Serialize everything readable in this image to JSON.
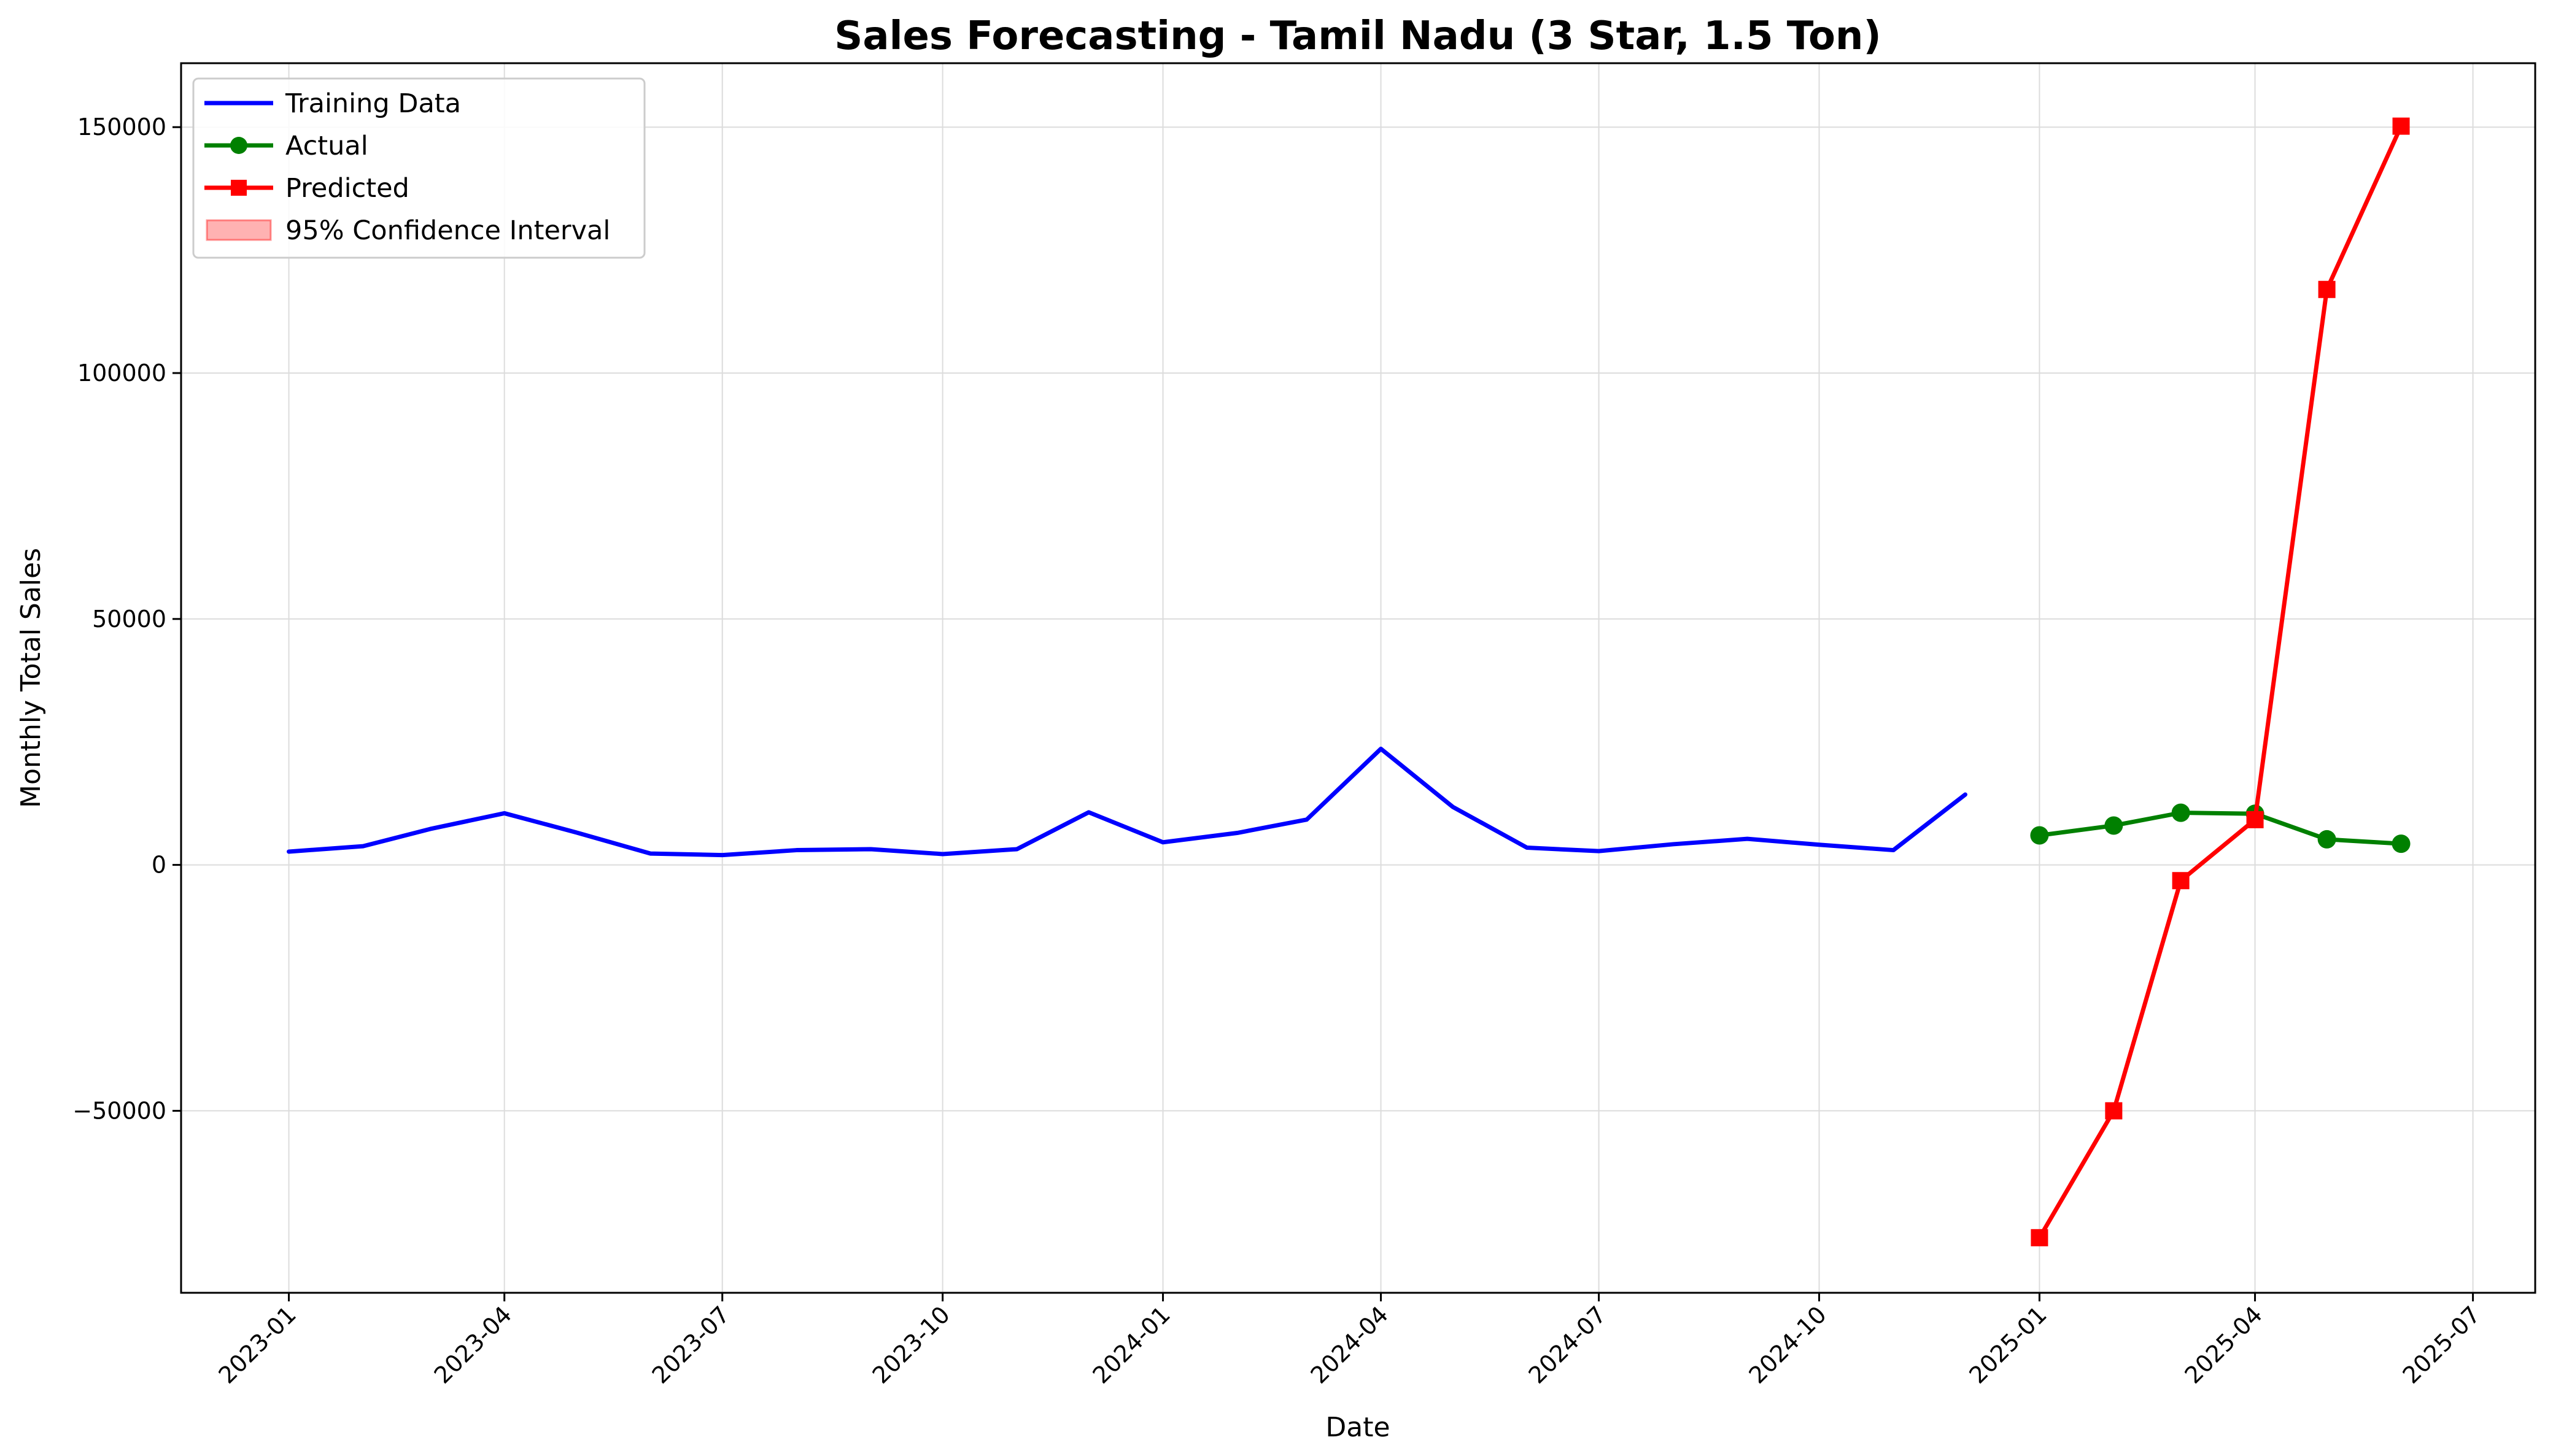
{
  "chart_data": {
    "type": "line",
    "title": "Sales Forecasting - Tamil Nadu (3 Star, 1.5 Ton)",
    "xlabel": "Date",
    "ylabel": "Monthly Total Sales",
    "xlim": [
      "2022-11-17",
      "2025-07-27"
    ],
    "ylim": [
      -87000,
      163000
    ],
    "x_ticks": [
      "2023-01",
      "2023-04",
      "2023-07",
      "2023-10",
      "2024-01",
      "2024-04",
      "2024-07",
      "2024-10",
      "2025-01",
      "2025-04",
      "2025-07"
    ],
    "y_ticks": [
      -50000,
      0,
      50000,
      100000,
      150000
    ],
    "y_tick_labels": [
      "−50000",
      "0",
      "50000",
      "100000",
      "150000"
    ],
    "grid": true,
    "legend_position": "top-left",
    "series": [
      {
        "name": "Training Data",
        "color": "#0000ff",
        "marker": "none",
        "x": [
          "2023-01-01",
          "2023-02-01",
          "2023-03-01",
          "2023-04-01",
          "2023-05-01",
          "2023-06-01",
          "2023-07-01",
          "2023-08-01",
          "2023-09-01",
          "2023-10-01",
          "2023-11-01",
          "2023-12-01",
          "2024-01-01",
          "2024-02-01",
          "2024-03-01",
          "2024-04-01",
          "2024-05-01",
          "2024-06-01",
          "2024-07-01",
          "2024-08-01",
          "2024-09-01",
          "2024-10-01",
          "2024-11-01",
          "2024-12-01"
        ],
        "y": [
          2700,
          3800,
          7300,
          10500,
          6600,
          2300,
          2000,
          3000,
          3200,
          2200,
          3200,
          10700,
          4600,
          6500,
          9200,
          23600,
          11800,
          3500,
          2800,
          4200,
          5300,
          4100,
          3000,
          14300
        ]
      },
      {
        "name": "Actual",
        "color": "#008000",
        "marker": "circle",
        "x": [
          "2025-01-01",
          "2025-02-01",
          "2025-03-01",
          "2025-04-01",
          "2025-05-01",
          "2025-06-01"
        ],
        "y": [
          6000,
          8000,
          10600,
          10400,
          5200,
          4300
        ]
      },
      {
        "name": "Predicted",
        "color": "#ff0000",
        "marker": "square",
        "x": [
          "2025-01-01",
          "2025-02-01",
          "2025-03-01",
          "2025-04-01",
          "2025-05-01",
          "2025-06-01"
        ],
        "y": [
          -75800,
          -50000,
          -3200,
          9200,
          117000,
          150200
        ]
      }
    ],
    "legend": [
      {
        "label": "Training Data",
        "kind": "line",
        "color": "#0000ff"
      },
      {
        "label": "Actual",
        "kind": "line-circle",
        "color": "#008000"
      },
      {
        "label": "Predicted",
        "kind": "line-square",
        "color": "#ff0000"
      },
      {
        "label": "95% Confidence Interval",
        "kind": "patch",
        "color": "#ff0000"
      }
    ]
  }
}
